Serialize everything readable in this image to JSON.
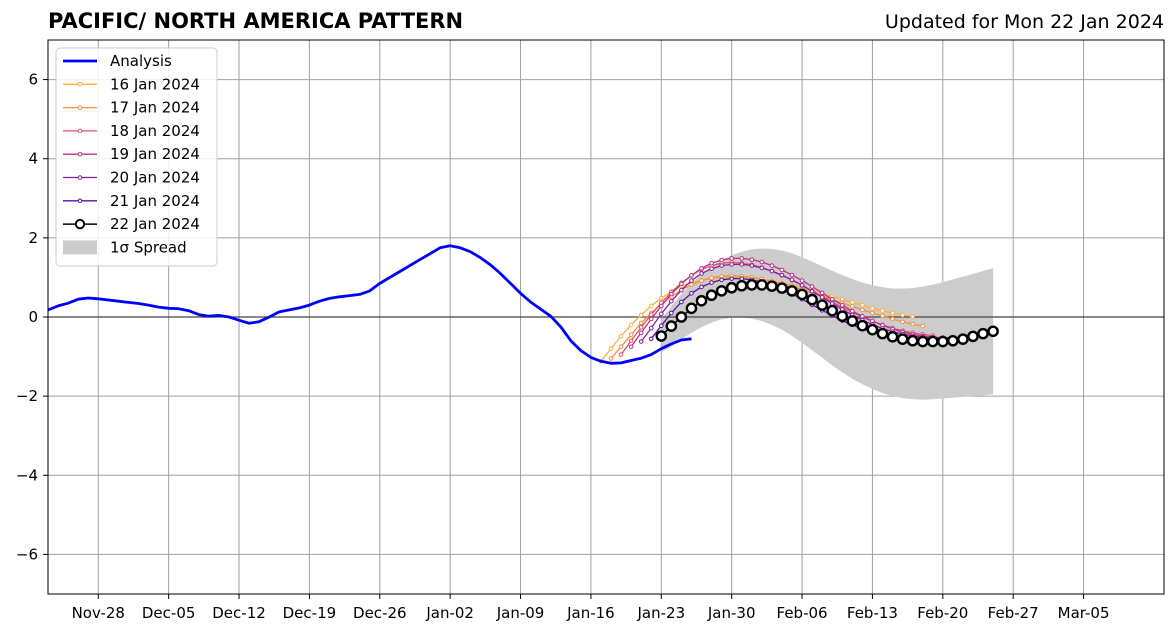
{
  "header": {
    "title": "PACIFIC/ NORTH AMERICA PATTERN",
    "updated": "Updated for Mon 22 Jan 2024"
  },
  "chart_data": {
    "type": "line",
    "title": "PACIFIC/ NORTH AMERICA PATTERN",
    "ylim": [
      -7,
      7
    ],
    "yticks": [
      -6,
      -4,
      -2,
      0,
      2,
      4,
      6
    ],
    "ytick_labels": [
      "−6",
      "−4",
      "−2",
      "0",
      "2",
      "4",
      "6"
    ],
    "xlim": [
      "2023-11-23",
      "2024-03-13"
    ],
    "xtick_dates": [
      "2023-11-28",
      "2023-12-05",
      "2023-12-12",
      "2023-12-19",
      "2023-12-26",
      "2024-01-02",
      "2024-01-09",
      "2024-01-16",
      "2024-01-23",
      "2024-01-30",
      "2024-02-06",
      "2024-02-13",
      "2024-02-20",
      "2024-02-27",
      "2024-03-05"
    ],
    "xtick_labels": [
      "Nov-28",
      "Dec-05",
      "Dec-12",
      "Dec-19",
      "Dec-26",
      "Jan-02",
      "Jan-09",
      "Jan-16",
      "Jan-23",
      "Jan-30",
      "Feb-06",
      "Feb-13",
      "Feb-20",
      "Feb-27",
      "Mar-05"
    ],
    "grid": true,
    "legend_position": "top-left",
    "analysis": {
      "name": "Analysis",
      "color": "#0000ff",
      "start_date": "2023-11-23",
      "values": [
        0.18,
        0.28,
        0.35,
        0.45,
        0.48,
        0.46,
        0.43,
        0.4,
        0.37,
        0.34,
        0.3,
        0.25,
        0.22,
        0.21,
        0.16,
        0.06,
        0.02,
        0.04,
        0.0,
        -0.08,
        -0.16,
        -0.12,
        0.0,
        0.13,
        0.18,
        0.23,
        0.3,
        0.4,
        0.47,
        0.51,
        0.54,
        0.57,
        0.66,
        0.85,
        1.0,
        1.15,
        1.3,
        1.45,
        1.6,
        1.75,
        1.8,
        1.75,
        1.65,
        1.5,
        1.32,
        1.1,
        0.85,
        0.6,
        0.38,
        0.2,
        0.02,
        -0.25,
        -0.6,
        -0.85,
        -1.02,
        -1.12,
        -1.17,
        -1.16,
        -1.1,
        -1.04,
        -0.95,
        -0.8,
        -0.68,
        -0.58,
        -0.55
      ]
    },
    "forecasts": [
      {
        "name": "16 Jan 2024",
        "color": "#fbb13c",
        "start_date": "2024-01-17",
        "values": [
          -1.12,
          -0.8,
          -0.48,
          -0.2,
          0.05,
          0.28,
          0.48,
          0.64,
          0.78,
          0.87,
          0.93,
          0.97,
          0.99,
          1.0,
          1.0,
          0.98,
          0.95,
          0.91,
          0.86,
          0.8,
          0.74,
          0.67,
          0.6,
          0.52,
          0.45,
          0.37,
          0.3,
          0.22,
          0.16,
          0.1,
          0.05,
          0.01
        ]
      },
      {
        "name": "17 Jan 2024",
        "color": "#f58f3c",
        "start_date": "2024-01-18",
        "values": [
          -1.05,
          -0.75,
          -0.45,
          -0.15,
          0.1,
          0.32,
          0.52,
          0.68,
          0.82,
          0.92,
          0.99,
          1.03,
          1.04,
          1.03,
          1.0,
          0.96,
          0.9,
          0.84,
          0.77,
          0.69,
          0.61,
          0.53,
          0.44,
          0.35,
          0.27,
          0.18,
          0.1,
          0.03,
          -0.05,
          -0.12,
          -0.18,
          -0.23
        ]
      },
      {
        "name": "18 Jan 2024",
        "color": "#e34f6f",
        "start_date": "2024-01-19",
        "values": [
          -0.95,
          -0.6,
          -0.26,
          0.06,
          0.36,
          0.63,
          0.86,
          1.05,
          1.2,
          1.3,
          1.36,
          1.38,
          1.36,
          1.32,
          1.25,
          1.16,
          1.05,
          0.93,
          0.8,
          0.66,
          0.52,
          0.38,
          0.24,
          0.12,
          0.0,
          -0.11,
          -0.2,
          -0.28,
          -0.35,
          -0.4,
          -0.44,
          -0.47
        ]
      },
      {
        "name": "19 Jan 2024",
        "color": "#b83289",
        "start_date": "2024-01-20",
        "values": [
          -0.75,
          -0.4,
          -0.05,
          0.28,
          0.58,
          0.84,
          1.05,
          1.23,
          1.36,
          1.44,
          1.48,
          1.48,
          1.45,
          1.39,
          1.3,
          1.19,
          1.06,
          0.92,
          0.77,
          0.61,
          0.45,
          0.3,
          0.15,
          0.02,
          -0.1,
          -0.21,
          -0.3,
          -0.38,
          -0.44,
          -0.48,
          -0.51,
          -0.52
        ]
      },
      {
        "name": "20 Jan 2024",
        "color": "#8c1d9e",
        "start_date": "2024-01-21",
        "values": [
          -0.62,
          -0.28,
          0.08,
          0.4,
          0.68,
          0.92,
          1.1,
          1.22,
          1.3,
          1.33,
          1.33,
          1.3,
          1.24,
          1.16,
          1.06,
          0.94,
          0.8,
          0.65,
          0.5,
          0.34,
          0.19,
          0.05,
          -0.08,
          -0.19,
          -0.29,
          -0.37,
          -0.43,
          -0.48,
          -0.51,
          -0.53,
          -0.53,
          -0.52
        ]
      },
      {
        "name": "21 Jan 2024",
        "color": "#5a0f9e",
        "start_date": "2024-01-22",
        "values": [
          -0.55,
          -0.22,
          0.1,
          0.38,
          0.6,
          0.76,
          0.87,
          0.94,
          0.97,
          0.97,
          0.94,
          0.88,
          0.8,
          0.7,
          0.58,
          0.45,
          0.31,
          0.17,
          0.04,
          -0.09,
          -0.2,
          -0.3,
          -0.38,
          -0.45,
          -0.5,
          -0.54,
          -0.57,
          -0.58,
          -0.58,
          -0.57,
          -0.55,
          -0.53
        ]
      }
    ],
    "current": {
      "name": "22 Jan 2024",
      "color": "#000000",
      "start_date": "2024-01-23",
      "values": [
        -0.48,
        -0.23,
        0.0,
        0.22,
        0.41,
        0.55,
        0.66,
        0.74,
        0.79,
        0.81,
        0.81,
        0.78,
        0.73,
        0.66,
        0.57,
        0.44,
        0.3,
        0.16,
        0.02,
        -0.1,
        -0.22,
        -0.32,
        -0.42,
        -0.5,
        -0.56,
        -0.6,
        -0.62,
        -0.62,
        -0.62,
        -0.6,
        -0.56,
        -0.49,
        -0.42,
        -0.36
      ]
    },
    "spread": {
      "name": "1σ Spread",
      "color": "#cccccc",
      "start_date": "2024-01-23",
      "upper": [
        -0.05,
        0.28,
        0.58,
        0.85,
        1.08,
        1.28,
        1.44,
        1.56,
        1.65,
        1.71,
        1.73,
        1.72,
        1.68,
        1.61,
        1.51,
        1.4,
        1.28,
        1.17,
        1.06,
        0.96,
        0.87,
        0.8,
        0.75,
        0.72,
        0.72,
        0.73,
        0.77,
        0.82,
        0.88,
        0.95,
        1.02,
        1.09,
        1.16,
        1.23
      ],
      "lower": [
        -0.9,
        -0.74,
        -0.56,
        -0.4,
        -0.26,
        -0.14,
        -0.06,
        -0.01,
        -0.01,
        -0.04,
        -0.1,
        -0.2,
        -0.32,
        -0.48,
        -0.65,
        -0.84,
        -1.03,
        -1.22,
        -1.4,
        -1.56,
        -1.7,
        -1.82,
        -1.92,
        -2.0,
        -2.05,
        -2.08,
        -2.09,
        -2.08,
        -2.06,
        -2.04,
        -2.02,
        -2.0,
        -1.98,
        -1.95
      ]
    }
  }
}
